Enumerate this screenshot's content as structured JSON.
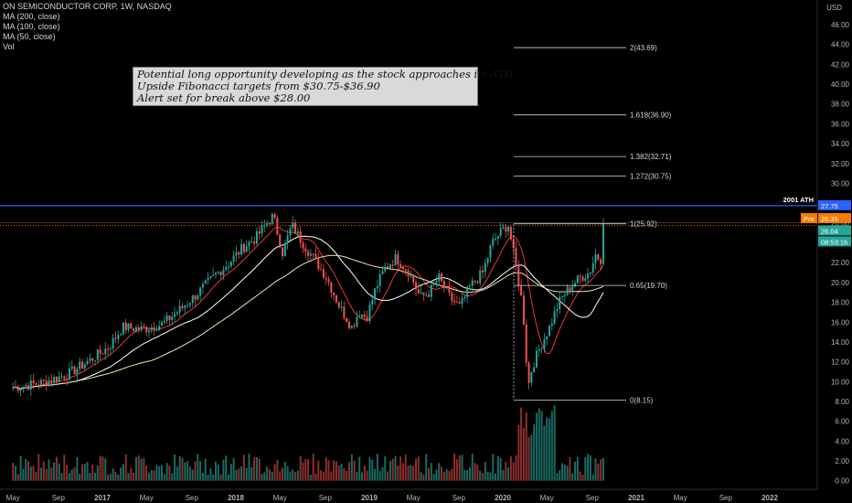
{
  "legend": {
    "symbol": "ON SEMICONDUCTOR CORP, 1W, NASDAQ",
    "ma200": "MA (200, close)",
    "ma100": "MA (100, close)",
    "ma50": "MA (50, close)",
    "vol": "Vol"
  },
  "annotation": {
    "line1": "Potential long opportunity developing as the stock  approaches its ATH.",
    "line2": "Upside Fibonacci targets from $30.75-$36.90",
    "line3": "Alert set for break above $28.00"
  },
  "price_tags": {
    "ath_label": "2001 ATH",
    "ath_value": "27.75",
    "pre_label": "Pre",
    "pre_value": "26.35",
    "last_value": "26.04",
    "countdown": "08:53:16"
  },
  "colors": {
    "up": "#26a69a",
    "down": "#ef5350",
    "ma200": "#f3e0b0",
    "ma100": "#ffffff",
    "ma50": "#e53935",
    "ath_line": "#2962ff",
    "fib_line": "#d1d4dc",
    "pre_tag": "#f57c00",
    "last_tag": "#26a69a"
  },
  "chart_data": {
    "type": "candlestick",
    "currency": "USD",
    "price_axis_ticks": [
      -2,
      0,
      2,
      4,
      6,
      8,
      10,
      12,
      14,
      16,
      18,
      20,
      22,
      24,
      26,
      28,
      30,
      32,
      34,
      36,
      38,
      40,
      42,
      44,
      46
    ],
    "time_axis_labels": [
      "May",
      "Sep",
      "2017",
      "May",
      "Sep",
      "2018",
      "May",
      "Sep",
      "2019",
      "May",
      "Sep",
      "2020",
      "May",
      "Sep",
      "2021",
      "May",
      "Sep",
      "2022"
    ],
    "ath_2001": 27.75,
    "fib_levels": [
      {
        "label": "2(43.69)",
        "value": 43.69
      },
      {
        "label": "1.618(36.90)",
        "value": 36.9
      },
      {
        "label": "1.382(32.71)",
        "value": 32.71
      },
      {
        "label": "1.272(30.75)",
        "value": 30.75
      },
      {
        "label": "1(25.92)",
        "value": 25.92
      },
      {
        "label": "0.65(19.70)",
        "value": 19.7
      },
      {
        "label": "0(8.15)",
        "value": 8.15
      }
    ],
    "close_path": [
      [
        2016.33,
        9.4
      ],
      [
        2016.55,
        9.9
      ],
      [
        2016.75,
        10.8
      ],
      [
        2016.92,
        12.3
      ],
      [
        2017.05,
        13.5
      ],
      [
        2017.15,
        15.5
      ],
      [
        2017.3,
        15.3
      ],
      [
        2017.45,
        15.8
      ],
      [
        2017.6,
        17.5
      ],
      [
        2017.72,
        19.0
      ],
      [
        2017.85,
        20.8
      ],
      [
        2017.95,
        22.0
      ],
      [
        2018.05,
        23.5
      ],
      [
        2018.15,
        24.5
      ],
      [
        2018.22,
        25.8
      ],
      [
        2018.28,
        26.7
      ],
      [
        2018.35,
        23.0
      ],
      [
        2018.42,
        25.8
      ],
      [
        2018.5,
        24.0
      ],
      [
        2018.58,
        22.5
      ],
      [
        2018.68,
        20.5
      ],
      [
        2018.78,
        17.5
      ],
      [
        2018.87,
        15.5
      ],
      [
        2018.92,
        17.0
      ],
      [
        2018.98,
        16.5
      ],
      [
        2019.05,
        19.5
      ],
      [
        2019.12,
        21.5
      ],
      [
        2019.2,
        22.5
      ],
      [
        2019.3,
        21.0
      ],
      [
        2019.38,
        18.5
      ],
      [
        2019.45,
        19.0
      ],
      [
        2019.52,
        20.5
      ],
      [
        2019.6,
        18.5
      ],
      [
        2019.68,
        17.5
      ],
      [
        2019.75,
        19.5
      ],
      [
        2019.85,
        21.0
      ],
      [
        2019.92,
        24.0
      ],
      [
        2019.98,
        25.0
      ],
      [
        2020.04,
        25.9
      ],
      [
        2020.1,
        21.5
      ],
      [
        2020.15,
        17.5
      ],
      [
        2020.19,
        9.5
      ],
      [
        2020.22,
        11.5
      ],
      [
        2020.28,
        13.5
      ],
      [
        2020.35,
        15.5
      ],
      [
        2020.42,
        18.0
      ],
      [
        2020.5,
        19.5
      ],
      [
        2020.58,
        20.5
      ],
      [
        2020.65,
        21.0
      ],
      [
        2020.7,
        23.0
      ],
      [
        2020.73,
        22.0
      ],
      [
        2020.77,
        26.04
      ]
    ],
    "volume_range": [
      -2,
      8
    ],
    "last_price": 26.04,
    "premarket_price": 26.35
  }
}
